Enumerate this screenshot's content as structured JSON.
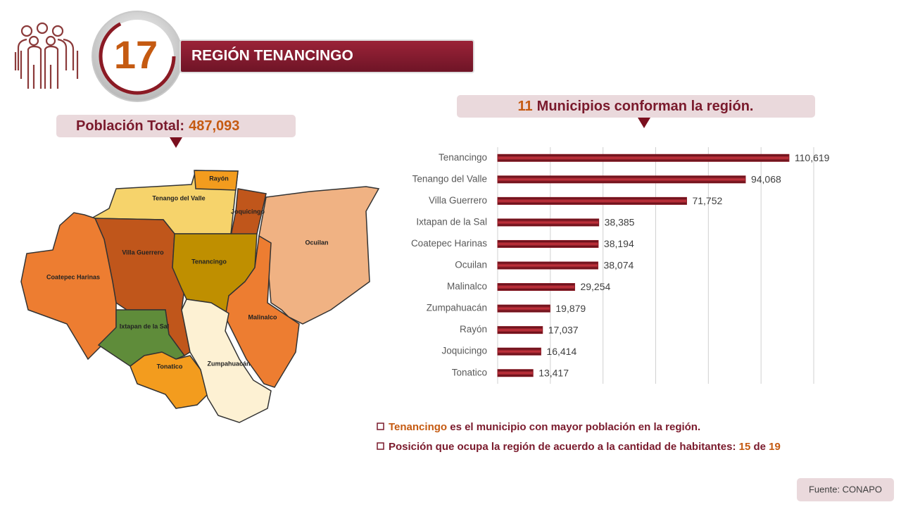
{
  "header": {
    "number": "17",
    "title": "REGIÓN TENANCINGO"
  },
  "population": {
    "label": "Población Total:",
    "value": "487,093"
  },
  "municipalities": {
    "count": "11",
    "text": "Municipios conforman la región."
  },
  "map": {
    "labels": [
      "Rayón",
      "Tenango del Valle",
      "Joquicingo",
      "Ocuilan",
      "Villa Guerrero",
      "Tenancingo",
      "Coatepec Harinas",
      "Malinalco",
      "Ixtapan de la Sal",
      "Tonatico",
      "Zumpahuacán"
    ]
  },
  "chart_data": {
    "type": "hbar",
    "categories": [
      "Tenancingo",
      "Tenango del Valle",
      "Villa Guerrero",
      "Ixtapan de la Sal",
      "Coatepec Harinas",
      "Ocuilan",
      "Malinalco",
      "Zumpahuacán",
      "Rayón",
      "Joquicingo",
      "Tonatico"
    ],
    "values": [
      110619,
      94068,
      71752,
      38385,
      38194,
      38074,
      29254,
      19879,
      17037,
      16414,
      13417
    ],
    "value_labels": [
      "110,619",
      "94,068",
      "71,752",
      "38,385",
      "38,194",
      "38,074",
      "29,254",
      "19,879",
      "17,037",
      "16,414",
      "13,417"
    ],
    "color": "#8b1a24",
    "xlim": [
      0,
      120000
    ],
    "xticks": [
      0,
      20000,
      40000,
      60000,
      80000,
      100000,
      120000
    ],
    "grid": true
  },
  "notes": [
    {
      "highlight": "Tenancingo",
      "text": " es el municipio con mayor población en la región."
    },
    {
      "text": "Posición que ocupa la región de acuerdo a la cantidad de habitantes: ",
      "position": "15",
      "connector": " de ",
      "total": "19"
    }
  ],
  "source": "Fuente: CONAPO"
}
